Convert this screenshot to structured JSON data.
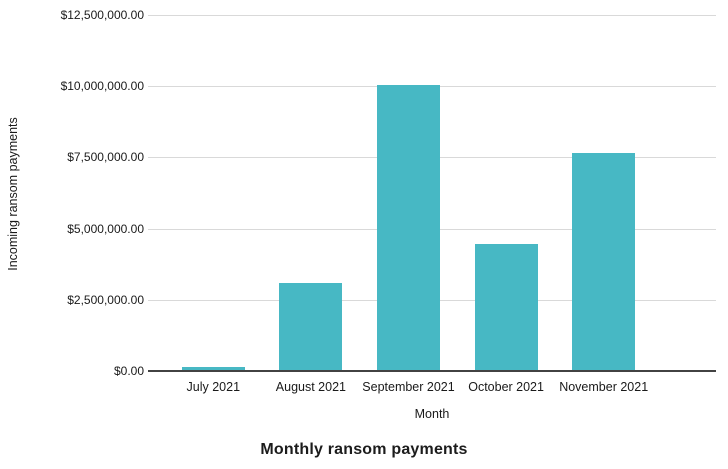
{
  "chart_data": {
    "type": "bar",
    "title": "Monthly ransom payments",
    "xlabel": "Month",
    "ylabel": "Incoming ransom payments",
    "categories": [
      "July 2021",
      "August 2021",
      "September 2021",
      "October 2021",
      "November 2021"
    ],
    "values": [
      150000,
      3100000,
      10050000,
      4450000,
      7650000
    ],
    "ylim": [
      0,
      12500000
    ],
    "ytick_step": 2500000,
    "ytick_labels": [
      "$0.00",
      "$2,500,000.00",
      "$5,000,000.00",
      "$7,500,000.00",
      "$10,000,000.00",
      "$12,500,000.00"
    ],
    "grid": true,
    "legend": "none",
    "bar_color": "#47b8c4",
    "gridline_color": "#d9d9d9",
    "axis_line_color": "#424242",
    "text_color": "#1a1a1a"
  }
}
